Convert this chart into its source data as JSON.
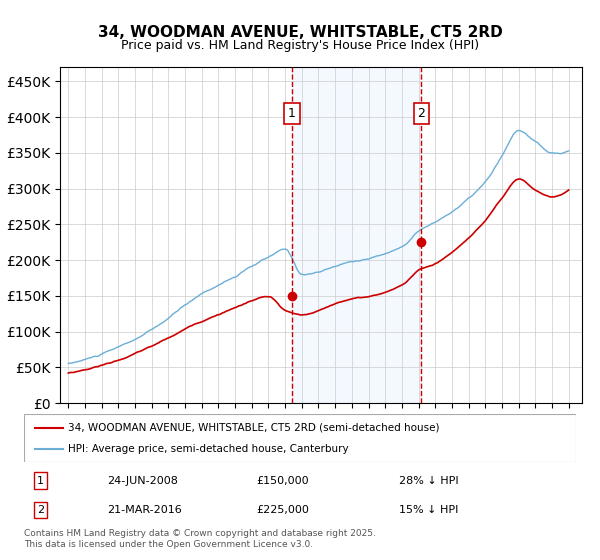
{
  "title": "34, WOODMAN AVENUE, WHITSTABLE, CT5 2RD",
  "subtitle": "Price paid vs. HM Land Registry's House Price Index (HPI)",
  "legend_line1": "34, WOODMAN AVENUE, WHITSTABLE, CT5 2RD (semi-detached house)",
  "legend_line2": "HPI: Average price, semi-detached house, Canterbury",
  "annotation1_label": "1",
  "annotation1_date": "24-JUN-2008",
  "annotation1_price": 150000,
  "annotation1_hpi": "28% ↓ HPI",
  "annotation2_label": "2",
  "annotation2_date": "21-MAR-2016",
  "annotation2_price": 225000,
  "annotation2_hpi": "15% ↓ HPI",
  "footer": "Contains HM Land Registry data © Crown copyright and database right 2025.\nThis data is licensed under the Open Government Licence v3.0.",
  "hpi_color": "#6baed6",
  "price_color": "#cc0000",
  "annotation_color": "#cc0000",
  "vline_color": "#cc0000",
  "shade_color": "#ddeeff",
  "ylim": [
    0,
    470000
  ],
  "yticks": [
    0,
    50000,
    100000,
    150000,
    200000,
    250000,
    300000,
    350000,
    400000,
    450000
  ],
  "xlabel_start_year": 1995,
  "xlabel_end_year": 2025
}
